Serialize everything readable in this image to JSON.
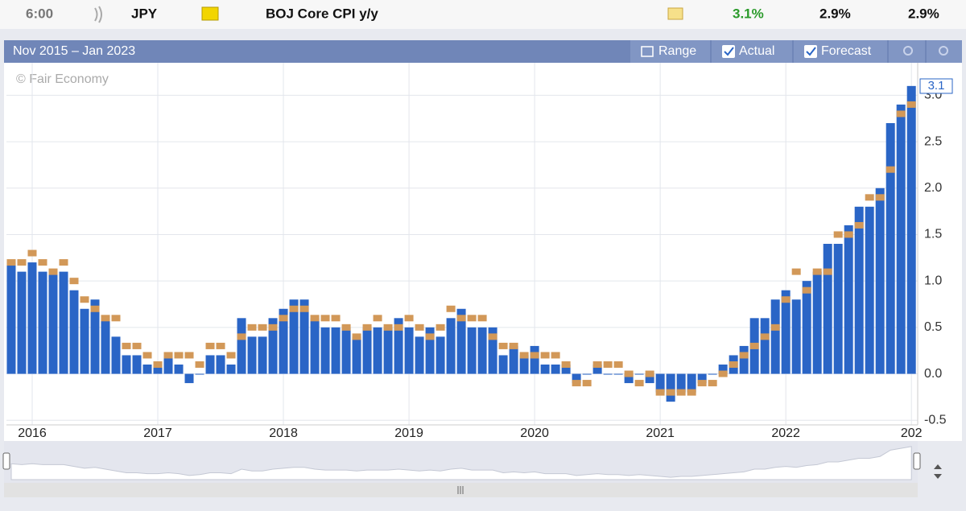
{
  "header": {
    "time": "6:00",
    "currency": "JPY",
    "event": "BOJ Core CPI y/y",
    "actual": "3.1%",
    "forecast": "2.9%",
    "previous": "2.9%"
  },
  "toolbar": {
    "range_text": "Nov 2015 – Jan 2023",
    "range_button": "Range"
  },
  "chart_data": {
    "type": "bar",
    "watermark": "© Fair Economy",
    "x": [
      "2015-11",
      "2015-12",
      "2016-01",
      "2016-02",
      "2016-03",
      "2016-04",
      "2016-05",
      "2016-06",
      "2016-07",
      "2016-08",
      "2016-09",
      "2016-10",
      "2016-11",
      "2016-12",
      "2017-01",
      "2017-02",
      "2017-03",
      "2017-04",
      "2017-05",
      "2017-06",
      "2017-07",
      "2017-08",
      "2017-09",
      "2017-10",
      "2017-11",
      "2017-12",
      "2018-01",
      "2018-02",
      "2018-03",
      "2018-04",
      "2018-05",
      "2018-06",
      "2018-07",
      "2018-08",
      "2018-09",
      "2018-10",
      "2018-11",
      "2018-12",
      "2019-01",
      "2019-02",
      "2019-03",
      "2019-04",
      "2019-05",
      "2019-06",
      "2019-07",
      "2019-08",
      "2019-09",
      "2019-10",
      "2019-11",
      "2019-12",
      "2020-01",
      "2020-02",
      "2020-03",
      "2020-04",
      "2020-05",
      "2020-06",
      "2020-07",
      "2020-08",
      "2020-09",
      "2020-10",
      "2020-11",
      "2020-12",
      "2021-01",
      "2021-02",
      "2021-03",
      "2021-04",
      "2021-05",
      "2021-06",
      "2021-07",
      "2021-08",
      "2021-09",
      "2021-10",
      "2021-11",
      "2021-12",
      "2022-01",
      "2022-02",
      "2022-03",
      "2022-04",
      "2022-05",
      "2022-06",
      "2022-07",
      "2022-08",
      "2022-09",
      "2022-10",
      "2022-11",
      "2022-12",
      "2023-01"
    ],
    "series": [
      {
        "name": "Actual",
        "kind": "bar",
        "color": "#2a65c6",
        "values": [
          1.2,
          1.1,
          1.2,
          1.1,
          1.1,
          1.1,
          0.9,
          0.7,
          0.8,
          0.6,
          0.4,
          0.2,
          0.2,
          0.1,
          0.1,
          0.2,
          0.1,
          -0.1,
          0.0,
          0.2,
          0.2,
          0.1,
          0.6,
          0.4,
          0.4,
          0.6,
          0.7,
          0.8,
          0.8,
          0.6,
          0.5,
          0.5,
          0.5,
          0.4,
          0.5,
          0.5,
          0.5,
          0.6,
          0.5,
          0.4,
          0.5,
          0.4,
          0.6,
          0.7,
          0.5,
          0.5,
          0.5,
          0.2,
          0.3,
          0.2,
          0.3,
          0.1,
          0.1,
          0.1,
          -0.1,
          0.0,
          0.1,
          0.0,
          0.0,
          -0.1,
          0.0,
          -0.1,
          -0.2,
          -0.3,
          -0.2,
          -0.2,
          -0.1,
          0.0,
          0.1,
          0.2,
          0.3,
          0.6,
          0.6,
          0.8,
          0.9,
          0.8,
          1.0,
          1.1,
          1.4,
          1.4,
          1.6,
          1.8,
          1.8,
          2.0,
          2.7,
          2.9,
          3.1
        ]
      },
      {
        "name": "Forecast",
        "kind": "marker",
        "color": "#d29858",
        "values": [
          1.2,
          1.2,
          1.3,
          1.2,
          1.1,
          1.2,
          1.0,
          0.8,
          0.7,
          0.6,
          0.6,
          0.3,
          0.3,
          0.2,
          0.1,
          0.2,
          0.2,
          0.2,
          0.1,
          0.3,
          0.3,
          0.2,
          0.4,
          0.5,
          0.5,
          0.5,
          0.6,
          0.7,
          0.7,
          0.6,
          0.6,
          0.6,
          0.5,
          0.4,
          0.5,
          0.6,
          0.5,
          0.5,
          0.6,
          0.5,
          0.4,
          0.5,
          0.7,
          0.6,
          0.6,
          0.6,
          0.4,
          0.3,
          0.3,
          0.2,
          0.2,
          0.2,
          0.2,
          0.1,
          -0.1,
          -0.1,
          0.1,
          0.1,
          0.1,
          0.0,
          -0.1,
          0.0,
          -0.2,
          -0.2,
          -0.2,
          -0.2,
          -0.1,
          -0.1,
          0.0,
          0.1,
          0.2,
          0.3,
          0.4,
          0.5,
          0.8,
          1.1,
          0.9,
          1.1,
          1.1,
          1.5,
          1.5,
          1.6,
          1.9,
          1.9,
          2.2,
          2.8,
          2.9
        ]
      }
    ],
    "xlim": [
      2015.795,
      2023.05
    ],
    "xticks": [
      2016,
      2017,
      2018,
      2019,
      2020,
      2021,
      2022,
      {
        "value": 2023,
        "label": "202"
      }
    ],
    "ylim": [
      -0.55,
      3.35
    ],
    "yticks": [
      -0.5,
      {
        "value": 0,
        "label": "0.0"
      },
      0.5,
      {
        "value": 1,
        "label": "1.0"
      },
      1.5,
      {
        "value": 2,
        "label": "2.0"
      },
      2.5,
      {
        "value": 3,
        "label": "3.0"
      }
    ],
    "grid": true,
    "last_label": "3.1"
  }
}
